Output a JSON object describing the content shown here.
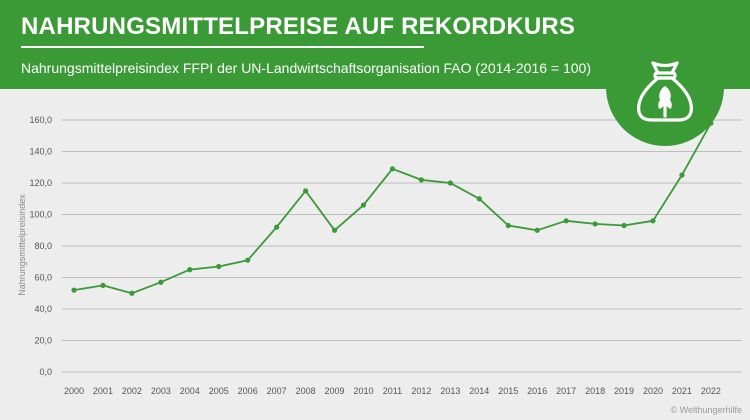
{
  "header": {
    "title": "NAHRUNGSMITTELPREISE AUF REKORDKURS",
    "subtitle": "Nahrungsmittelpreisindex FFPI der UN-Landwirtschaftsorganisation FAO (2014-2016 = 100)",
    "badge_icon": "grain-sack-icon"
  },
  "footer": {
    "credit": "© Welthungerhilfe"
  },
  "colors": {
    "brand_green": "#3a9a35",
    "background": "#ededed",
    "grid": "#bdbdbd",
    "axis_text": "#555555"
  },
  "chart_data": {
    "type": "line",
    "title": "",
    "xlabel": "",
    "ylabel": "Nahrungsmittelpreisindex",
    "x": [
      "2000",
      "2001",
      "2002",
      "2003",
      "2004",
      "2005",
      "2006",
      "2007",
      "2008",
      "2009",
      "2010",
      "2011",
      "2012",
      "2013",
      "2014",
      "2015",
      "2016",
      "2017",
      "2018",
      "2019",
      "2020",
      "2021",
      "2022"
    ],
    "series": [
      {
        "values": [
          52,
          55,
          50,
          57,
          65,
          67,
          71,
          92,
          115,
          90,
          106,
          129,
          122,
          120,
          110,
          93,
          90,
          96,
          94,
          93,
          96,
          125,
          158
        ]
      }
    ],
    "ylim": [
      0,
      160
    ],
    "yticks": [
      "0,0",
      "20,0",
      "40,0",
      "60,0",
      "80,0",
      "100,0",
      "120,0",
      "140,0",
      "160,0"
    ],
    "grid": true,
    "markers": true
  }
}
